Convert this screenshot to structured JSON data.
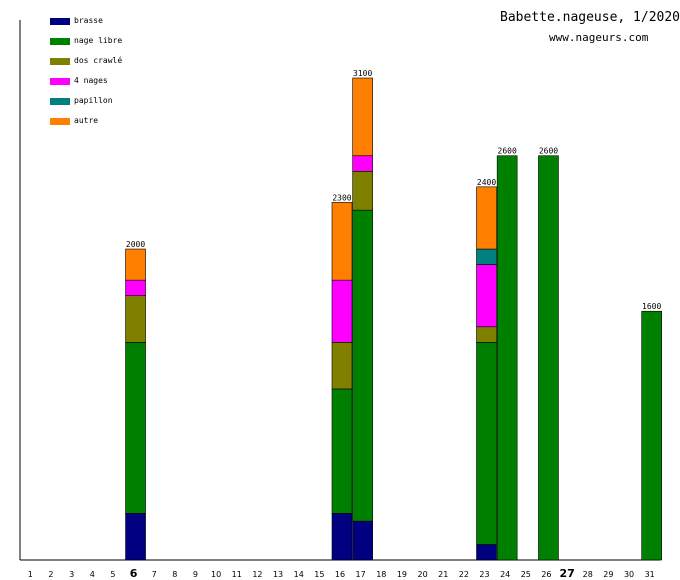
{
  "header": {
    "title": "Babette.nageuse, 1/2020",
    "site": "www.nageurs.com"
  },
  "chart_data": {
    "type": "bar",
    "stacked": true,
    "title": "Babette.nageuse, 1/2020",
    "subtitle": "www.nageurs.com",
    "xlabel": "",
    "ylabel": "",
    "ylim": [
      0,
      3100
    ],
    "legend_position": "top-left",
    "categories": [
      "1",
      "2",
      "3",
      "4",
      "5",
      "6",
      "7",
      "8",
      "9",
      "10",
      "11",
      "12",
      "13",
      "14",
      "15",
      "16",
      "17",
      "18",
      "19",
      "20",
      "21",
      "22",
      "23",
      "24",
      "25",
      "26",
      "27",
      "28",
      "29",
      "30",
      "31"
    ],
    "highlighted_categories": [
      "6",
      "27"
    ],
    "series": [
      {
        "name": "brasse",
        "color": "#000080",
        "values": [
          0,
          0,
          0,
          0,
          0,
          300,
          0,
          0,
          0,
          0,
          0,
          0,
          0,
          0,
          0,
          300,
          250,
          0,
          0,
          0,
          0,
          0,
          100,
          0,
          0,
          0,
          0,
          0,
          0,
          0,
          0
        ]
      },
      {
        "name": "nage libre",
        "color": "#008000",
        "values": [
          0,
          0,
          0,
          0,
          0,
          1100,
          0,
          0,
          0,
          0,
          0,
          0,
          0,
          0,
          0,
          800,
          2000,
          0,
          0,
          0,
          0,
          0,
          1300,
          2600,
          0,
          2600,
          0,
          0,
          0,
          0,
          1600
        ]
      },
      {
        "name": "dos crawlé",
        "color": "#808000",
        "values": [
          0,
          0,
          0,
          0,
          0,
          300,
          0,
          0,
          0,
          0,
          0,
          0,
          0,
          0,
          0,
          300,
          250,
          0,
          0,
          0,
          0,
          0,
          100,
          0,
          0,
          0,
          0,
          0,
          0,
          0,
          0
        ]
      },
      {
        "name": "4 nages",
        "color": "#ff00ff",
        "values": [
          0,
          0,
          0,
          0,
          0,
          100,
          0,
          0,
          0,
          0,
          0,
          0,
          0,
          0,
          0,
          400,
          100,
          0,
          0,
          0,
          0,
          0,
          400,
          0,
          0,
          0,
          0,
          0,
          0,
          0,
          0
        ]
      },
      {
        "name": "papillon",
        "color": "#008080",
        "values": [
          0,
          0,
          0,
          0,
          0,
          0,
          0,
          0,
          0,
          0,
          0,
          0,
          0,
          0,
          0,
          0,
          0,
          0,
          0,
          0,
          0,
          0,
          100,
          0,
          0,
          0,
          0,
          0,
          0,
          0,
          0
        ]
      },
      {
        "name": "autre",
        "color": "#ff8000",
        "values": [
          0,
          0,
          0,
          0,
          0,
          200,
          0,
          0,
          0,
          0,
          0,
          0,
          0,
          0,
          0,
          500,
          500,
          0,
          0,
          0,
          0,
          0,
          400,
          0,
          0,
          0,
          0,
          0,
          0,
          0,
          0
        ]
      }
    ],
    "totals": [
      0,
      0,
      0,
      0,
      0,
      2000,
      0,
      0,
      0,
      0,
      0,
      0,
      0,
      0,
      0,
      2300,
      3100,
      0,
      0,
      0,
      0,
      0,
      2400,
      2600,
      0,
      2600,
      0,
      0,
      0,
      0,
      1600
    ],
    "total_labels": [
      "",
      "",
      "",
      "",
      "",
      "2000",
      "",
      "",
      "",
      "",
      "",
      "",
      "",
      "",
      "",
      "2300",
      "3100",
      "",
      "",
      "",
      "",
      "",
      "2400",
      "2600",
      "",
      "2600",
      "",
      "",
      "",
      "",
      "1600"
    ]
  }
}
